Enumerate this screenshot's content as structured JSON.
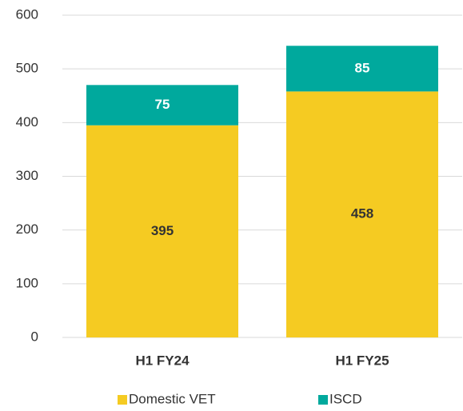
{
  "chart_data": {
    "type": "stacked_bar",
    "categories": [
      "H1 FY24",
      "H1 FY25"
    ],
    "series": [
      {
        "name": "Domestic VET",
        "color": "#f5cb22",
        "values": [
          395,
          458
        ]
      },
      {
        "name": "ISCD",
        "color": "#00a99d",
        "values": [
          75,
          85
        ]
      }
    ],
    "ylim": [
      0,
      600
    ],
    "yticks": [
      0,
      100,
      200,
      300,
      400,
      500,
      600
    ],
    "grid": true,
    "legend": "bottom"
  }
}
